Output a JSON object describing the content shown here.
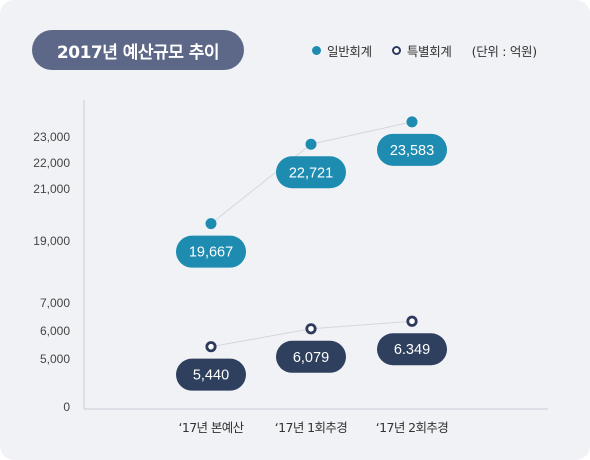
{
  "title": "2017년 예산규모 추이",
  "unit": "(단위 : 억원)",
  "colors": {
    "general": "#1e8bb0",
    "special": "#2d3a5c",
    "special_label_bg": "#2f3f5e",
    "connector": "#d4d6e0",
    "axis": "#c9ccd6",
    "tick_text": "#444444"
  },
  "chart_data": {
    "type": "line",
    "title": "2017년 예산규모 추이",
    "categories": [
      "‘17년 본예산",
      "‘17년 1회추경",
      "‘17년 2회추경"
    ],
    "y_ticks": [
      "23,000",
      "22,000",
      "21,000",
      "19,000",
      "7,000",
      "6,000",
      "5,000",
      "0"
    ],
    "y_axis_broken": true,
    "legend": "top-right",
    "grid": false,
    "series": [
      {
        "name": "일반회계",
        "values": [
          19667,
          22721,
          23583
        ],
        "labels": [
          "19,667",
          "22,721",
          "23,583"
        ],
        "marker": "filled-circle"
      },
      {
        "name": "특별회계",
        "values": [
          5440,
          6079,
          6349
        ],
        "labels": [
          "5,440",
          "6,079",
          "6.349"
        ],
        "marker": "ring"
      }
    ]
  }
}
